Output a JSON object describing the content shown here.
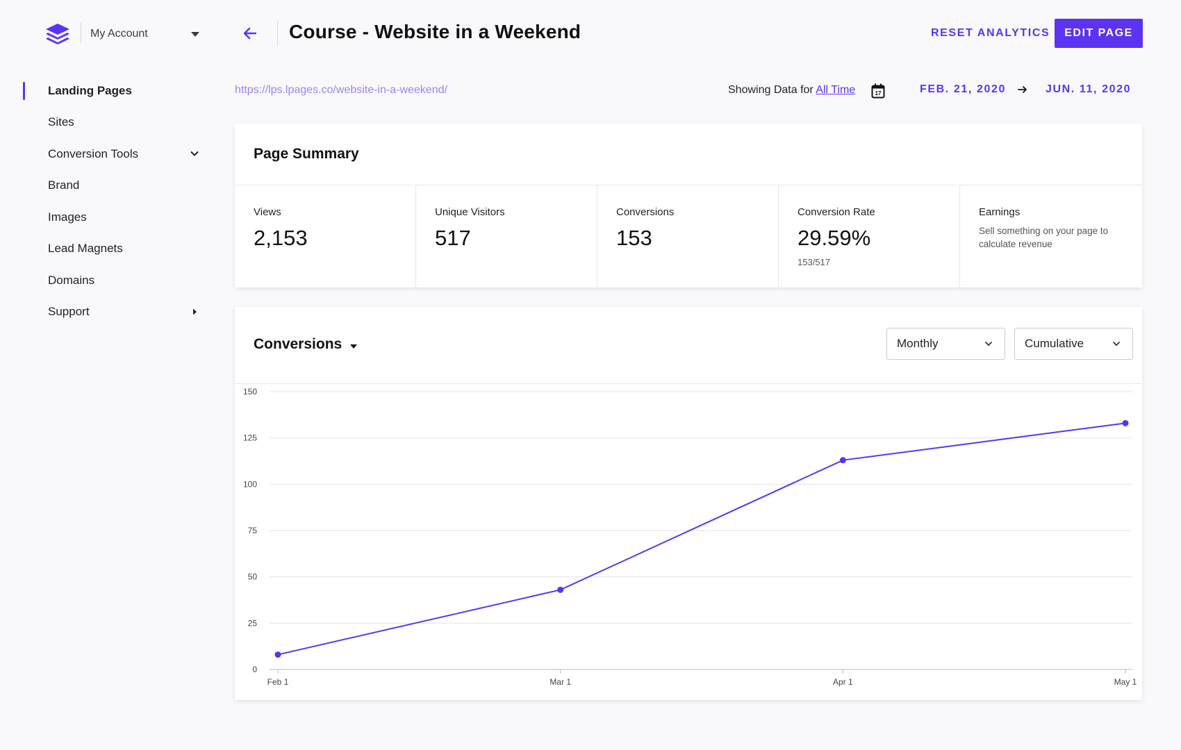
{
  "account": {
    "label": "My Account"
  },
  "sidebar": {
    "items": [
      {
        "label": "Landing Pages",
        "active": true
      },
      {
        "label": "Sites"
      },
      {
        "label": "Conversion Tools",
        "icon": "chevron-down-icon"
      },
      {
        "label": "Brand"
      },
      {
        "label": "Images"
      },
      {
        "label": "Lead Magnets"
      },
      {
        "label": "Domains"
      },
      {
        "label": "Support",
        "icon": "caret-right-icon"
      }
    ]
  },
  "header": {
    "title": "Course - Website in a Weekend",
    "reset_label": "RESET ANALYTICS",
    "edit_label": "EDIT PAGE"
  },
  "page_url": "https://lps.lpages.co/website-in-a-weekend/",
  "date_filter": {
    "showing_prefix": "Showing Data for",
    "range_link": "All Time",
    "start": "FEB. 21, 2020",
    "end": "JUN. 11, 2020"
  },
  "summary": {
    "title": "Page Summary",
    "metrics": [
      {
        "label": "Views",
        "value": "2,153"
      },
      {
        "label": "Unique Visitors",
        "value": "517"
      },
      {
        "label": "Conversions",
        "value": "153"
      },
      {
        "label": "Conversion Rate",
        "value": "29.59%",
        "sub": "153/517"
      },
      {
        "label": "Earnings",
        "note": "Sell something on your page to calculate revenue"
      }
    ]
  },
  "conversions": {
    "title": "Conversions",
    "period_select": "Monthly",
    "mode_select": "Cumulative"
  },
  "colors": {
    "accent": "#5b33f0",
    "link_light": "#9b82f3"
  },
  "chart_data": {
    "type": "line",
    "categories": [
      "Feb 1",
      "Mar 1",
      "Apr 1",
      "May 1"
    ],
    "values": [
      8,
      43,
      113,
      133
    ],
    "yticks": [
      0,
      25,
      50,
      75,
      100,
      125,
      150
    ],
    "ylim": [
      0,
      150
    ],
    "grid": true
  }
}
